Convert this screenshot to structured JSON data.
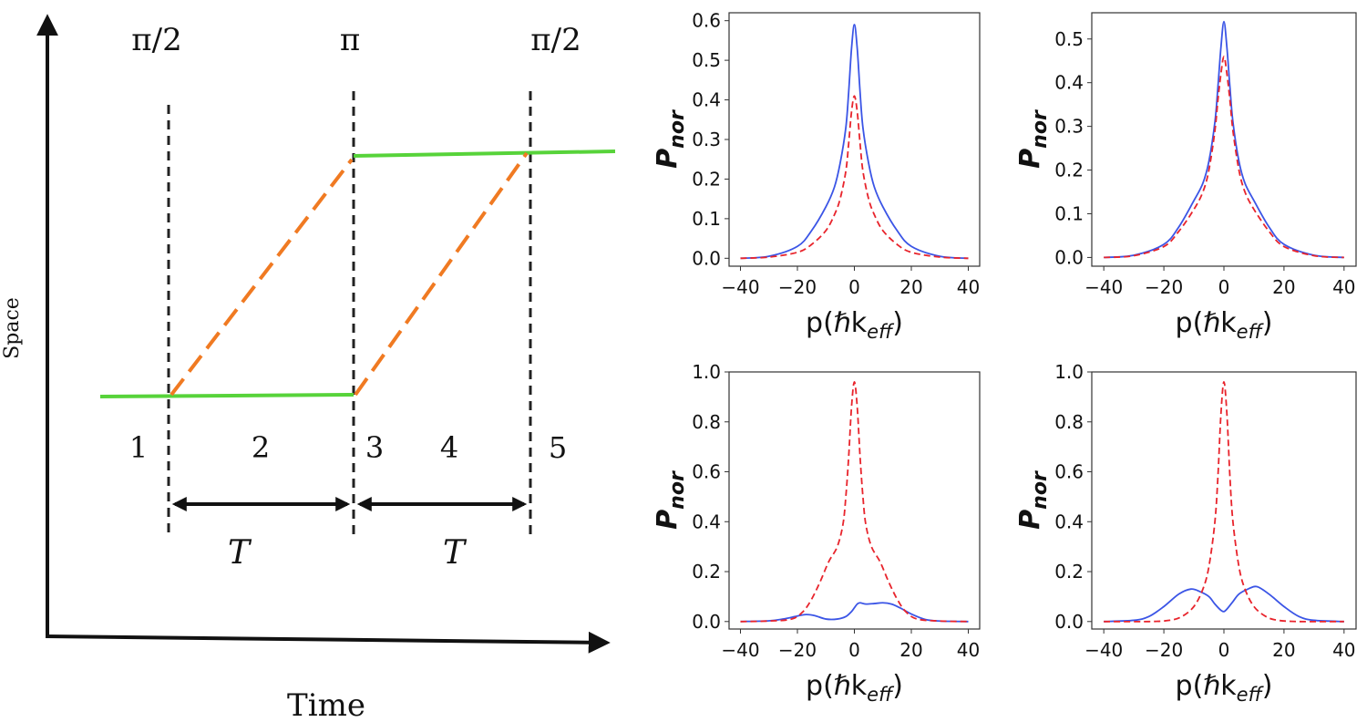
{
  "diagram": {
    "axis_x_label": "Time",
    "axis_y_label": "Space",
    "pulses": [
      {
        "label": "π/2"
      },
      {
        "label": "π"
      },
      {
        "label": "π/2"
      }
    ],
    "regions": [
      "1",
      "2",
      "3",
      "4",
      "5"
    ],
    "interval_labels": [
      "T",
      "T"
    ],
    "colors": {
      "green_path": "#57d33a",
      "orange_path": "#f07a22",
      "markers": "#222222",
      "arrows": "#111111"
    }
  },
  "chart_data": [
    {
      "type": "line",
      "panel": "top-left",
      "xlabel_main": "p(ℏk",
      "xlabel_sub": "eff",
      "xlabel_close": ")",
      "ylabel_main": "P",
      "ylabel_sub": "nor",
      "xlim": [
        -44,
        44
      ],
      "ylim": [
        -0.02,
        0.62
      ],
      "xticks": [
        -40,
        -20,
        0,
        20,
        40
      ],
      "xtick_labels": [
        "−40",
        "−20",
        "0",
        "20",
        "40"
      ],
      "yticks": [
        0.0,
        0.1,
        0.2,
        0.3,
        0.4,
        0.5,
        0.6
      ],
      "ytick_labels": [
        "0.0",
        "0.1",
        "0.2",
        "0.3",
        "0.4",
        "0.5",
        "0.6"
      ],
      "series": [
        {
          "color": "#3b55e6",
          "dash": "solid",
          "x": [
            -40,
            -30,
            -20,
            -15,
            -10,
            -7,
            -5,
            -3,
            -2,
            -1,
            0,
            1,
            2,
            3,
            5,
            7,
            10,
            15,
            20,
            30,
            40
          ],
          "y": [
            0.0,
            0.005,
            0.03,
            0.07,
            0.13,
            0.18,
            0.24,
            0.33,
            0.42,
            0.53,
            0.59,
            0.53,
            0.42,
            0.33,
            0.24,
            0.18,
            0.13,
            0.07,
            0.03,
            0.005,
            0.0
          ]
        },
        {
          "color": "#e8242c",
          "dash": "dashed",
          "x": [
            -40,
            -30,
            -20,
            -15,
            -10,
            -7,
            -5,
            -3,
            -2,
            -1,
            0,
            1,
            2,
            3,
            5,
            7,
            10,
            15,
            20,
            30,
            40
          ],
          "y": [
            0.0,
            0.003,
            0.015,
            0.035,
            0.07,
            0.11,
            0.15,
            0.22,
            0.29,
            0.37,
            0.41,
            0.37,
            0.29,
            0.22,
            0.15,
            0.11,
            0.07,
            0.035,
            0.015,
            0.003,
            0.0
          ]
        }
      ]
    },
    {
      "type": "line",
      "panel": "top-right",
      "xlabel_main": "p(ℏk",
      "xlabel_sub": "eff",
      "xlabel_close": ")",
      "ylabel_main": "P",
      "ylabel_sub": "nor",
      "xlim": [
        -44,
        44
      ],
      "ylim": [
        -0.02,
        0.56
      ],
      "xticks": [
        -40,
        -20,
        0,
        20,
        40
      ],
      "xtick_labels": [
        "−40",
        "−20",
        "0",
        "20",
        "40"
      ],
      "yticks": [
        0.0,
        0.1,
        0.2,
        0.3,
        0.4,
        0.5
      ],
      "ytick_labels": [
        "0.0",
        "0.1",
        "0.2",
        "0.3",
        "0.4",
        "0.5"
      ],
      "series": [
        {
          "color": "#3b55e6",
          "dash": "solid",
          "x": [
            -40,
            -30,
            -20,
            -15,
            -10,
            -7,
            -5,
            -3,
            -2,
            -1,
            0,
            1,
            2,
            3,
            5,
            7,
            10,
            15,
            20,
            30,
            40
          ],
          "y": [
            0.0,
            0.005,
            0.03,
            0.07,
            0.13,
            0.17,
            0.22,
            0.31,
            0.39,
            0.48,
            0.54,
            0.48,
            0.39,
            0.31,
            0.22,
            0.17,
            0.13,
            0.07,
            0.03,
            0.005,
            0.0
          ]
        },
        {
          "color": "#e8242c",
          "dash": "dashed",
          "x": [
            -40,
            -30,
            -20,
            -15,
            -10,
            -7,
            -5,
            -3,
            -2,
            -1,
            0,
            1,
            2,
            3,
            5,
            7,
            10,
            15,
            20,
            30,
            40
          ],
          "y": [
            0.0,
            0.004,
            0.025,
            0.06,
            0.11,
            0.15,
            0.2,
            0.29,
            0.36,
            0.42,
            0.46,
            0.42,
            0.36,
            0.29,
            0.2,
            0.15,
            0.11,
            0.06,
            0.025,
            0.004,
            0.0
          ]
        }
      ]
    },
    {
      "type": "line",
      "panel": "bottom-left",
      "xlabel_main": "p(ℏk",
      "xlabel_sub": "eff",
      "xlabel_close": ")",
      "ylabel_main": "P",
      "ylabel_sub": "nor",
      "xlim": [
        -44,
        44
      ],
      "ylim": [
        -0.03,
        1.0
      ],
      "xticks": [
        -40,
        -20,
        0,
        20,
        40
      ],
      "xtick_labels": [
        "−40",
        "−20",
        "0",
        "20",
        "40"
      ],
      "yticks": [
        0.0,
        0.2,
        0.4,
        0.6,
        0.8,
        1.0
      ],
      "ytick_labels": [
        "0.0",
        "0.2",
        "0.4",
        "0.6",
        "0.8",
        "1.0"
      ],
      "series": [
        {
          "color": "#3b55e6",
          "dash": "solid",
          "x": [
            -40,
            -30,
            -25,
            -20,
            -17,
            -14,
            -10,
            -6,
            -3,
            -1,
            0,
            1,
            2,
            4,
            7,
            10,
            13,
            16,
            20,
            25,
            30,
            40
          ],
          "y": [
            0.0,
            0.003,
            0.01,
            0.022,
            0.028,
            0.024,
            0.01,
            0.01,
            0.02,
            0.04,
            0.055,
            0.07,
            0.075,
            0.07,
            0.072,
            0.075,
            0.07,
            0.055,
            0.03,
            0.008,
            0.002,
            0.0
          ]
        },
        {
          "color": "#e8242c",
          "dash": "dashed",
          "x": [
            -40,
            -30,
            -22,
            -18,
            -15,
            -12,
            -9,
            -6,
            -4,
            -3,
            -2,
            -1,
            0,
            1,
            2,
            3,
            4,
            6,
            9,
            12,
            15,
            18,
            22,
            30,
            40
          ],
          "y": [
            0.0,
            0.002,
            0.01,
            0.04,
            0.09,
            0.16,
            0.24,
            0.3,
            0.39,
            0.5,
            0.66,
            0.86,
            0.96,
            0.86,
            0.66,
            0.5,
            0.39,
            0.3,
            0.24,
            0.16,
            0.09,
            0.04,
            0.01,
            0.002,
            0.0
          ]
        }
      ]
    },
    {
      "type": "line",
      "panel": "bottom-right",
      "xlabel_main": "p(ℏk",
      "xlabel_sub": "eff",
      "xlabel_close": ")",
      "ylabel_main": "P",
      "ylabel_sub": "nor",
      "xlim": [
        -44,
        44
      ],
      "ylim": [
        -0.03,
        1.0
      ],
      "xticks": [
        -40,
        -20,
        0,
        20,
        40
      ],
      "xtick_labels": [
        "−40",
        "−20",
        "0",
        "20",
        "40"
      ],
      "yticks": [
        0.0,
        0.2,
        0.4,
        0.6,
        0.8,
        1.0
      ],
      "ytick_labels": [
        "0.0",
        "0.2",
        "0.4",
        "0.6",
        "0.8",
        "1.0"
      ],
      "series": [
        {
          "color": "#3b55e6",
          "dash": "solid",
          "x": [
            -40,
            -30,
            -25,
            -20,
            -15,
            -11,
            -8,
            -5,
            -3,
            -1,
            0,
            1,
            3,
            5,
            8,
            11,
            15,
            20,
            25,
            30,
            40
          ],
          "y": [
            0.0,
            0.005,
            0.02,
            0.06,
            0.11,
            0.13,
            0.12,
            0.1,
            0.07,
            0.045,
            0.04,
            0.05,
            0.08,
            0.11,
            0.13,
            0.14,
            0.11,
            0.06,
            0.02,
            0.005,
            0.0
          ]
        },
        {
          "color": "#e8242c",
          "dash": "dashed",
          "x": [
            -40,
            -25,
            -18,
            -14,
            -10,
            -7,
            -5,
            -3,
            -2,
            -1,
            0,
            1,
            2,
            3,
            5,
            7,
            10,
            14,
            18,
            25,
            40
          ],
          "y": [
            0.0,
            0.0,
            0.005,
            0.02,
            0.06,
            0.13,
            0.22,
            0.4,
            0.58,
            0.83,
            0.96,
            0.83,
            0.58,
            0.4,
            0.22,
            0.13,
            0.06,
            0.02,
            0.005,
            0.0,
            0.0
          ]
        }
      ]
    }
  ]
}
